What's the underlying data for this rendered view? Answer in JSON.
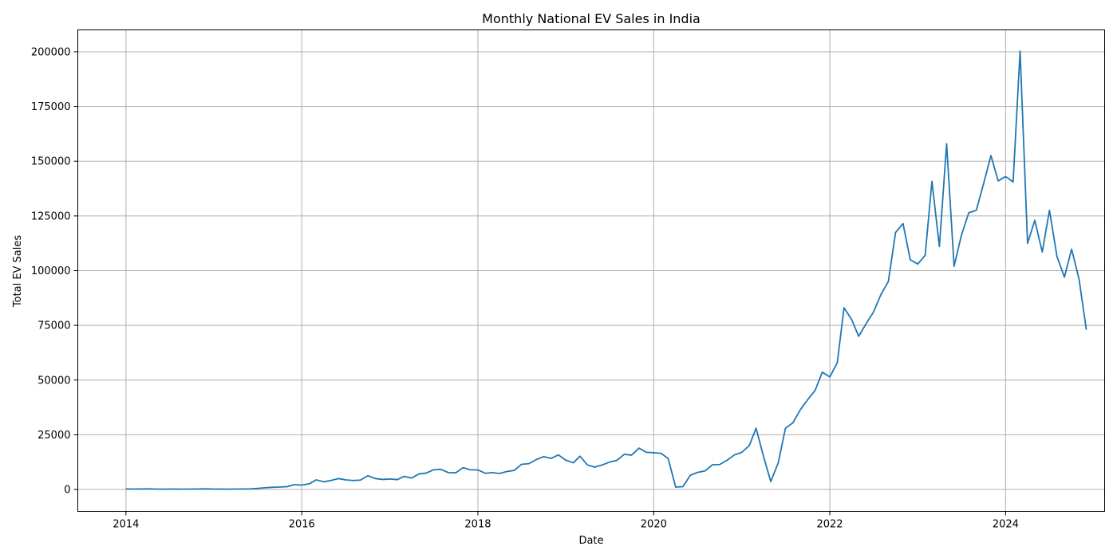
{
  "chart_data": {
    "type": "line",
    "title": "Monthly National EV Sales in India",
    "xlabel": "Date",
    "ylabel": "Total EV Sales",
    "xlim": [
      "2013-06-15",
      "2025-02-15"
    ],
    "ylim": [
      -10000,
      210000
    ],
    "x_ticks": [
      "2014",
      "2016",
      "2018",
      "2020",
      "2022",
      "2024"
    ],
    "y_ticks": [
      0,
      25000,
      50000,
      75000,
      100000,
      125000,
      150000,
      175000,
      200000
    ],
    "grid": true,
    "legend": "none",
    "color": "#1f77b4",
    "series": [
      {
        "x": [
          "2014-01",
          "2014-02",
          "2014-03",
          "2014-04",
          "2014-05",
          "2014-06",
          "2014-07",
          "2014-08",
          "2014-09",
          "2014-10",
          "2014-11",
          "2014-12",
          "2015-01",
          "2015-02",
          "2015-03",
          "2015-04",
          "2015-05",
          "2015-06",
          "2015-07",
          "2015-08",
          "2015-09",
          "2015-10",
          "2015-11",
          "2015-12",
          "2016-01",
          "2016-02",
          "2016-03",
          "2016-04",
          "2016-05",
          "2016-06",
          "2016-07",
          "2016-08",
          "2016-09",
          "2016-10",
          "2016-11",
          "2016-12",
          "2017-01",
          "2017-02",
          "2017-03",
          "2017-04",
          "2017-05",
          "2017-06",
          "2017-07",
          "2017-08",
          "2017-09",
          "2017-10",
          "2017-11",
          "2017-12",
          "2018-01",
          "2018-02",
          "2018-03",
          "2018-04",
          "2018-05",
          "2018-06",
          "2018-07",
          "2018-08",
          "2018-09",
          "2018-10",
          "2018-11",
          "2018-12",
          "2019-01",
          "2019-02",
          "2019-03",
          "2019-04",
          "2019-05",
          "2019-06",
          "2019-07",
          "2019-08",
          "2019-09",
          "2019-10",
          "2019-11",
          "2019-12",
          "2020-01",
          "2020-02",
          "2020-03",
          "2020-04",
          "2020-05",
          "2020-06",
          "2020-07",
          "2020-08",
          "2020-09",
          "2020-10",
          "2020-11",
          "2020-12",
          "2021-01",
          "2021-02",
          "2021-03",
          "2021-04",
          "2021-05",
          "2021-06",
          "2021-07",
          "2021-08",
          "2021-09",
          "2021-10",
          "2021-11",
          "2021-12",
          "2022-01",
          "2022-02",
          "2022-03",
          "2022-04",
          "2022-05",
          "2022-06",
          "2022-07",
          "2022-08",
          "2022-09",
          "2022-10",
          "2022-11",
          "2022-12",
          "2023-01",
          "2023-02",
          "2023-03",
          "2023-04",
          "2023-05",
          "2023-06",
          "2023-07",
          "2023-08",
          "2023-09",
          "2023-10",
          "2023-11",
          "2023-12",
          "2024-01",
          "2024-02",
          "2024-03",
          "2024-04",
          "2024-05",
          "2024-06",
          "2024-07",
          "2024-08",
          "2024-09",
          "2024-10",
          "2024-11",
          "2024-12"
        ],
        "values": [
          300,
          200,
          250,
          300,
          200,
          150,
          200,
          180,
          150,
          200,
          250,
          300,
          200,
          180,
          150,
          200,
          250,
          300,
          500,
          800,
          1000,
          1100,
          1300,
          2200,
          2000,
          2600,
          4400,
          3500,
          4100,
          5000,
          4400,
          4100,
          4300,
          6300,
          5000,
          4600,
          4800,
          4500,
          6000,
          5200,
          7100,
          7500,
          9000,
          9200,
          7700,
          7600,
          10000,
          9000,
          8900,
          7400,
          7700,
          7300,
          8200,
          8700,
          11500,
          11800,
          13700,
          15000,
          14200,
          15800,
          13400,
          12200,
          15200,
          11200,
          10200,
          11200,
          12500,
          13300,
          16100,
          15700,
          18900,
          17000,
          16800,
          16500,
          14100,
          1100,
          1300,
          6500,
          7800,
          8500,
          11300,
          11400,
          13400,
          15800,
          17000,
          20100,
          28000,
          15000,
          3600,
          12200,
          28000,
          30500,
          36500,
          41000,
          45300,
          53600,
          51400,
          57900,
          83000,
          77800,
          70000,
          75800,
          81000,
          89000,
          95000,
          117400,
          121500,
          105000,
          103000,
          107000,
          140800,
          111000,
          158000,
          102000,
          116000,
          126500,
          127500,
          139500,
          152600,
          141000,
          143000,
          140500,
          200300,
          112500,
          123000,
          108500,
          127600,
          106500,
          97000,
          109800,
          96000,
          73000
        ]
      }
    ]
  }
}
